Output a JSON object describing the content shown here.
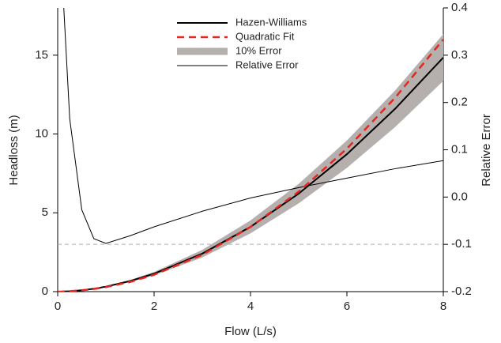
{
  "chart_data": {
    "type": "line",
    "x_label": "Flow (L/s)",
    "y_label": "Headloss (m)",
    "y2_label": "Relative Error",
    "x": [
      0,
      0.1,
      0.25,
      0.5,
      0.75,
      1,
      1.5,
      2,
      3,
      4,
      5,
      6,
      7,
      8
    ],
    "band": {
      "name": "10% Error",
      "color": "#b5afad",
      "lower": [
        0,
        0.004,
        0.022,
        0.078,
        0.167,
        0.284,
        0.602,
        1.03,
        2.17,
        3.7,
        5.6,
        7.85,
        10.44,
        13.37
      ],
      "upper": [
        0,
        0.005,
        0.026,
        0.096,
        0.204,
        0.348,
        0.736,
        1.25,
        2.65,
        4.52,
        6.84,
        9.59,
        12.76,
        16.34
      ]
    },
    "series": [
      {
        "name": "Hazen-Williams",
        "color": "#000000",
        "dash": false,
        "width": 2,
        "values": [
          0,
          0.0044,
          0.024,
          0.087,
          0.185,
          0.316,
          0.669,
          1.14,
          2.41,
          4.11,
          6.22,
          8.72,
          11.6,
          14.85
        ]
      },
      {
        "name": "Quadratic Fit",
        "color": "#e8251e",
        "dash": true,
        "width": 2.5,
        "values": [
          0,
          0.0064,
          0.028,
          0.085,
          0.169,
          0.285,
          0.614,
          1.07,
          2.34,
          4.1,
          6.34,
          9.07,
          12.3,
          16.0
        ]
      },
      {
        "name": "Relative Error",
        "color": "#000000",
        "dash": false,
        "width": 1,
        "axis": "y2",
        "values": [
          null,
          0.45,
          0.165,
          -0.027,
          -0.088,
          -0.098,
          -0.082,
          -0.063,
          -0.03,
          -0.002,
          0.02,
          0.04,
          0.06,
          0.077
        ]
      }
    ],
    "refline": {
      "value": -0.1,
      "axis": "y2",
      "color": "#aaaaaa"
    },
    "xlim": [
      0,
      8
    ],
    "xticks": [
      0,
      2,
      4,
      6,
      8
    ],
    "ylim": [
      0,
      18
    ],
    "yticks": [
      0,
      5,
      10,
      15
    ],
    "y2lim": [
      -0.2,
      0.4
    ],
    "y2ticks": [
      -0.2,
      -0.1,
      0.0,
      0.1,
      0.2,
      0.3,
      0.4
    ],
    "legend": "top"
  }
}
